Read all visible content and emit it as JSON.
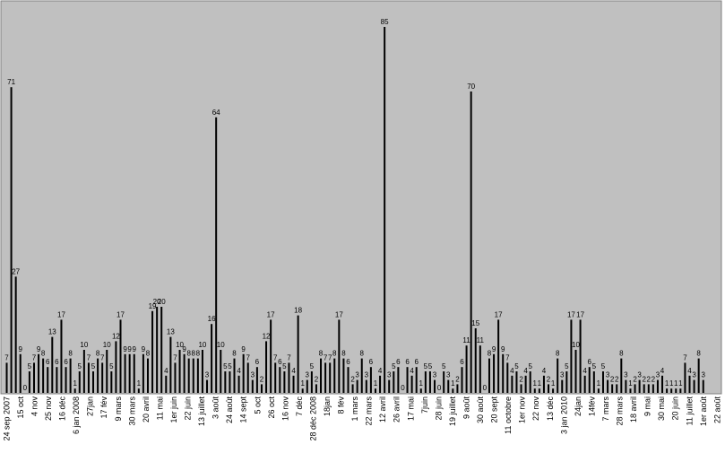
{
  "chart_data": {
    "type": "bar",
    "title": "",
    "xlabel": "",
    "ylabel": "",
    "ylim": [
      0,
      90
    ],
    "grid": false,
    "legend": "none",
    "colors": {
      "plot_background": "#c0c0c0",
      "bar": "#000000",
      "page": "#ffffff"
    },
    "values": [
      7,
      71,
      27,
      9,
      0,
      5,
      7,
      9,
      8,
      6,
      13,
      6,
      17,
      6,
      8,
      1,
      5,
      10,
      7,
      5,
      8,
      7,
      10,
      5,
      12,
      17,
      9,
      9,
      9,
      1,
      9,
      8,
      19,
      20,
      20,
      4,
      13,
      7,
      10,
      9,
      8,
      8,
      8,
      10,
      3,
      16,
      64,
      10,
      5,
      5,
      8,
      4,
      9,
      7,
      3,
      6,
      2,
      12,
      17,
      7,
      6,
      5,
      7,
      4,
      18,
      1,
      3,
      5,
      2,
      8,
      7,
      7,
      8,
      17,
      8,
      6,
      2,
      3,
      8,
      3,
      6,
      1,
      4,
      85,
      3,
      5,
      6,
      0,
      6,
      4,
      6,
      1,
      5,
      5,
      3,
      0,
      5,
      3,
      1,
      2,
      6,
      11,
      70,
      15,
      11,
      0,
      8,
      9,
      17,
      9,
      7,
      4,
      5,
      2,
      4,
      5,
      1,
      1,
      4,
      2,
      1,
      8,
      3,
      5,
      17,
      10,
      17,
      4,
      6,
      5,
      1,
      5,
      3,
      2,
      2,
      8,
      3,
      1,
      2,
      3,
      2,
      2,
      2,
      3,
      4,
      1,
      1,
      1,
      1,
      7,
      4,
      3,
      8,
      3
    ],
    "tick_labels": [
      "24 sep 2007",
      "15 oct",
      "4 nov",
      "25 nov",
      "16 déc",
      "6 jan 2008",
      "27jan",
      "17 fév",
      "9 mars",
      "30 mars",
      "20 avril",
      "11 mai",
      "1er juin",
      "22 juin",
      "13 juillet",
      "3 août",
      "24 août",
      "14 sept",
      "5 oct",
      "26 oct",
      "16 nov",
      "7 déc",
      "28 déc 2008",
      "18jan",
      "8 fév",
      "1 mars",
      "22 mars",
      "12 avril",
      "26 avril",
      "17 mai",
      "7juin",
      "28 juin",
      "19 juillet",
      "9 août",
      "30 août",
      "20 sept",
      "11 octobre",
      "1er nov",
      "22 nov",
      "13 déc",
      "3 jan 2010",
      "24jan",
      "14fév",
      "7 mars",
      "28 mars",
      "18 avril",
      "9 mai",
      "30 mai",
      "20 juin",
      "11 juillet",
      "1er août",
      "22 août"
    ]
  }
}
